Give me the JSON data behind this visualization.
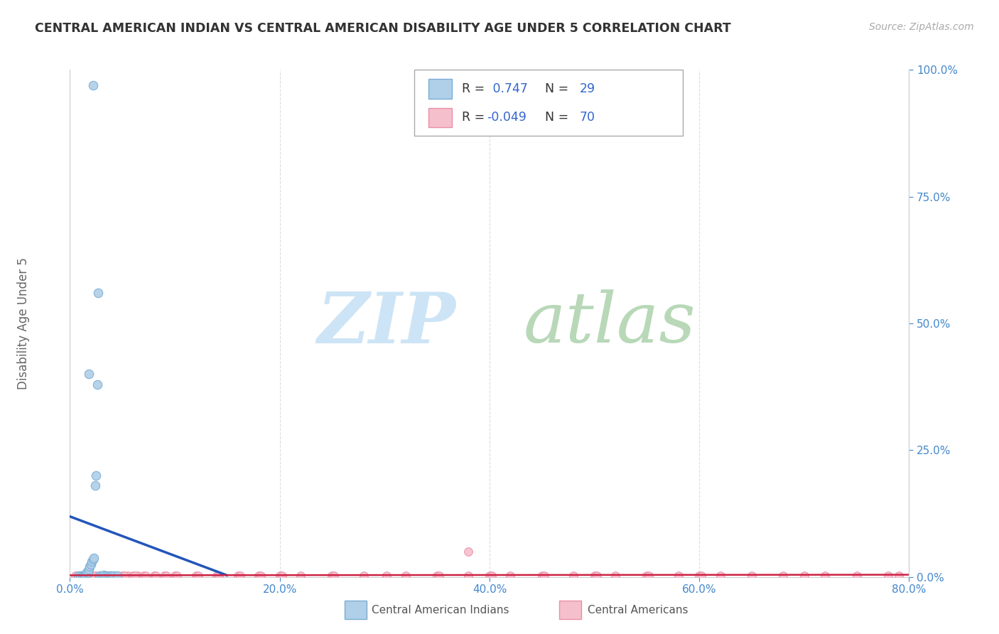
{
  "title": "CENTRAL AMERICAN INDIAN VS CENTRAL AMERICAN DISABILITY AGE UNDER 5 CORRELATION CHART",
  "source": "Source: ZipAtlas.com",
  "ylabel": "Disability Age Under 5",
  "xlim": [
    0.0,
    0.8
  ],
  "ylim": [
    0.0,
    1.0
  ],
  "xticks": [
    0.0,
    0.2,
    0.4,
    0.6,
    0.8
  ],
  "yticks": [
    0.0,
    0.25,
    0.5,
    0.75,
    1.0
  ],
  "blue_R": 0.747,
  "blue_N": 29,
  "pink_R": -0.049,
  "pink_N": 70,
  "blue_color": "#b0cfe8",
  "blue_edge_color": "#7aadd4",
  "pink_color": "#f5bfcc",
  "pink_edge_color": "#e890a8",
  "trend_blue_color": "#2255bb",
  "trend_pink_color": "#cc2244",
  "legend_label_blue": "Central American Indians",
  "legend_label_pink": "Central Americans",
  "blue_scatter_x": [
    0.008,
    0.01,
    0.012,
    0.013,
    0.014,
    0.015,
    0.016,
    0.017,
    0.018,
    0.019,
    0.02,
    0.021,
    0.022,
    0.023,
    0.024,
    0.025,
    0.026,
    0.027,
    0.028,
    0.03,
    0.032,
    0.034,
    0.036,
    0.038,
    0.04,
    0.042,
    0.045,
    0.022,
    0.018
  ],
  "blue_scatter_y": [
    0.002,
    0.003,
    0.003,
    0.004,
    0.003,
    0.005,
    0.01,
    0.008,
    0.015,
    0.02,
    0.025,
    0.03,
    0.035,
    0.038,
    0.18,
    0.2,
    0.38,
    0.56,
    0.003,
    0.003,
    0.004,
    0.003,
    0.003,
    0.003,
    0.003,
    0.003,
    0.003,
    0.97,
    0.4
  ],
  "pink_scatter_x": [
    0.005,
    0.01,
    0.012,
    0.015,
    0.018,
    0.02,
    0.025,
    0.03,
    0.035,
    0.04,
    0.045,
    0.05,
    0.055,
    0.06,
    0.065,
    0.07,
    0.08,
    0.09,
    0.1,
    0.12,
    0.14,
    0.16,
    0.18,
    0.2,
    0.22,
    0.25,
    0.28,
    0.32,
    0.35,
    0.38,
    0.4,
    0.42,
    0.45,
    0.48,
    0.5,
    0.52,
    0.55,
    0.58,
    0.6,
    0.62,
    0.65,
    0.68,
    0.7,
    0.72,
    0.75,
    0.78,
    0.022,
    0.032,
    0.042,
    0.052,
    0.062,
    0.072,
    0.082,
    0.092,
    0.102,
    0.122,
    0.142,
    0.162,
    0.182,
    0.202,
    0.252,
    0.302,
    0.352,
    0.402,
    0.452,
    0.502,
    0.552,
    0.602,
    0.38,
    0.79
  ],
  "pink_scatter_y": [
    0.003,
    0.003,
    0.003,
    0.003,
    0.003,
    0.003,
    0.003,
    0.003,
    0.003,
    0.003,
    0.003,
    0.003,
    0.003,
    0.003,
    0.003,
    0.003,
    0.003,
    0.003,
    0.003,
    0.003,
    0.003,
    0.003,
    0.003,
    0.003,
    0.003,
    0.003,
    0.003,
    0.003,
    0.003,
    0.003,
    0.003,
    0.003,
    0.003,
    0.003,
    0.003,
    0.003,
    0.003,
    0.003,
    0.003,
    0.003,
    0.003,
    0.003,
    0.003,
    0.003,
    0.003,
    0.003,
    0.003,
    0.003,
    0.003,
    0.003,
    0.003,
    0.003,
    0.003,
    0.003,
    0.003,
    0.003,
    0.003,
    0.003,
    0.003,
    0.003,
    0.003,
    0.003,
    0.003,
    0.003,
    0.003,
    0.003,
    0.003,
    0.003,
    0.05,
    0.003
  ],
  "watermark_color_zip": "#cce4f5",
  "watermark_color_atlas": "#b8d8b8",
  "background_color": "#ffffff",
  "grid_color": "#d8d8d8"
}
